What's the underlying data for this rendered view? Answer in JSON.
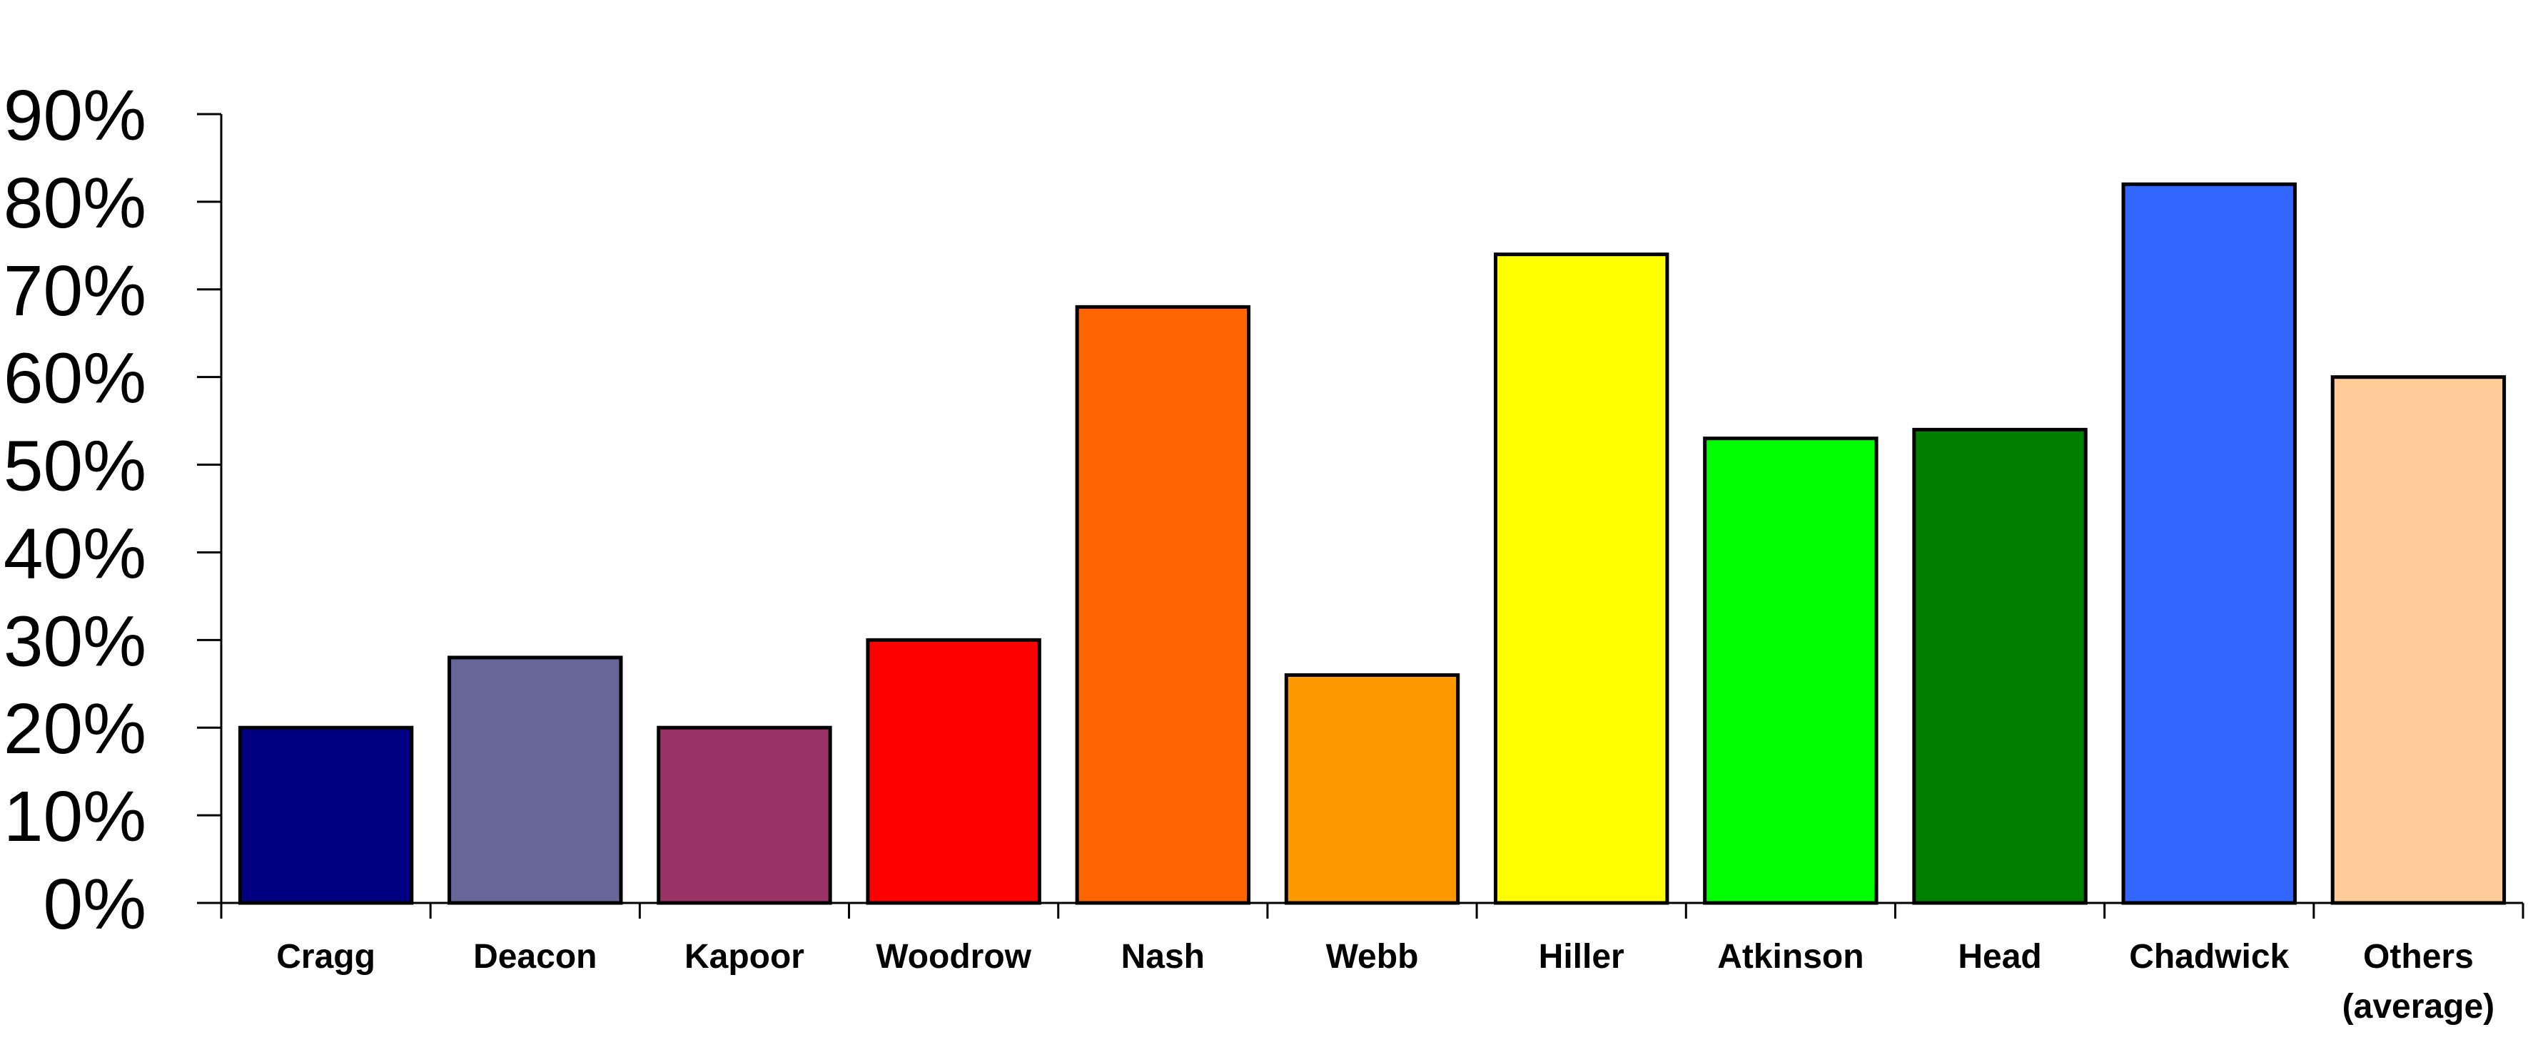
{
  "chart_data": {
    "type": "bar",
    "title": "",
    "xlabel": "",
    "ylabel": "",
    "ylim": [
      0,
      90
    ],
    "y_ticks": [
      0,
      10,
      20,
      30,
      40,
      50,
      60,
      70,
      80,
      90
    ],
    "y_tick_labels": [
      "0%",
      "10%",
      "20%",
      "30%",
      "40%",
      "50%",
      "60%",
      "70%",
      "80%",
      "90%"
    ],
    "grid": false,
    "legend": "none",
    "categories": [
      [
        "Cragg"
      ],
      [
        "Deacon"
      ],
      [
        "Kapoor"
      ],
      [
        "Woodrow"
      ],
      [
        "Nash"
      ],
      [
        "Webb"
      ],
      [
        "Hiller"
      ],
      [
        "Atkinson"
      ],
      [
        "Head"
      ],
      [
        "Chadwick"
      ],
      [
        "Others",
        "(average)"
      ]
    ],
    "values": [
      20,
      28,
      20,
      30,
      68,
      26,
      74,
      53,
      54,
      82,
      60
    ],
    "colors": [
      "#000080",
      "#666699",
      "#993366",
      "#ff0000",
      "#ff6600",
      "#ff9900",
      "#ffff00",
      "#00ff00",
      "#008000",
      "#3366ff",
      "#ffcc99"
    ]
  }
}
